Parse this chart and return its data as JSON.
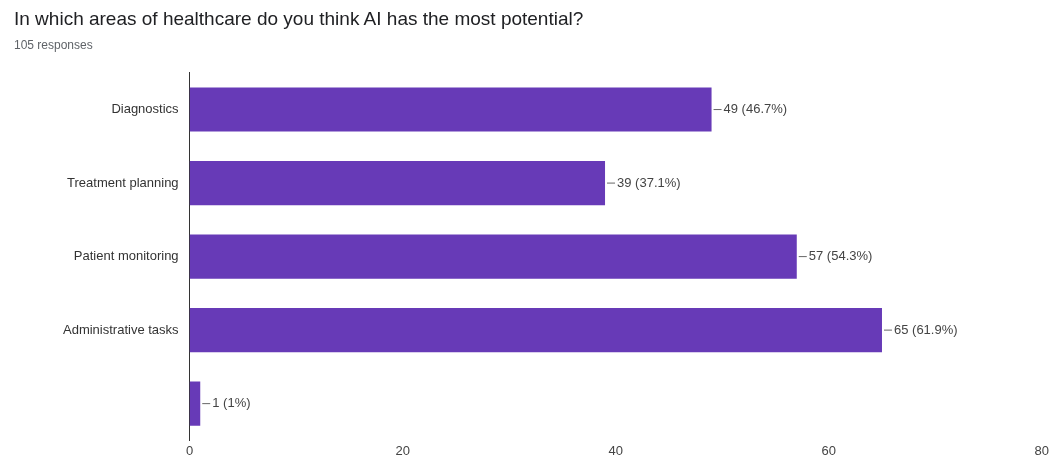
{
  "chart_data": {
    "type": "bar",
    "orientation": "horizontal",
    "title": "In which areas of healthcare do you think AI has the most potential?",
    "subtitle": "105 responses",
    "categories": [
      "Diagnostics",
      "Treatment planning",
      "Patient monitoring",
      "Administrative tasks",
      null
    ],
    "values": [
      49,
      39,
      57,
      65,
      1
    ],
    "value_labels": [
      "49 (46.7%)",
      "39 (37.1%)",
      "57 (54.3%)",
      "65 (61.9%)",
      "1 (1%)"
    ],
    "color": "#673ab7",
    "xlim": [
      0,
      80
    ],
    "xticks": [
      0,
      20,
      40,
      60,
      80
    ],
    "grid": false,
    "legend": false
  }
}
